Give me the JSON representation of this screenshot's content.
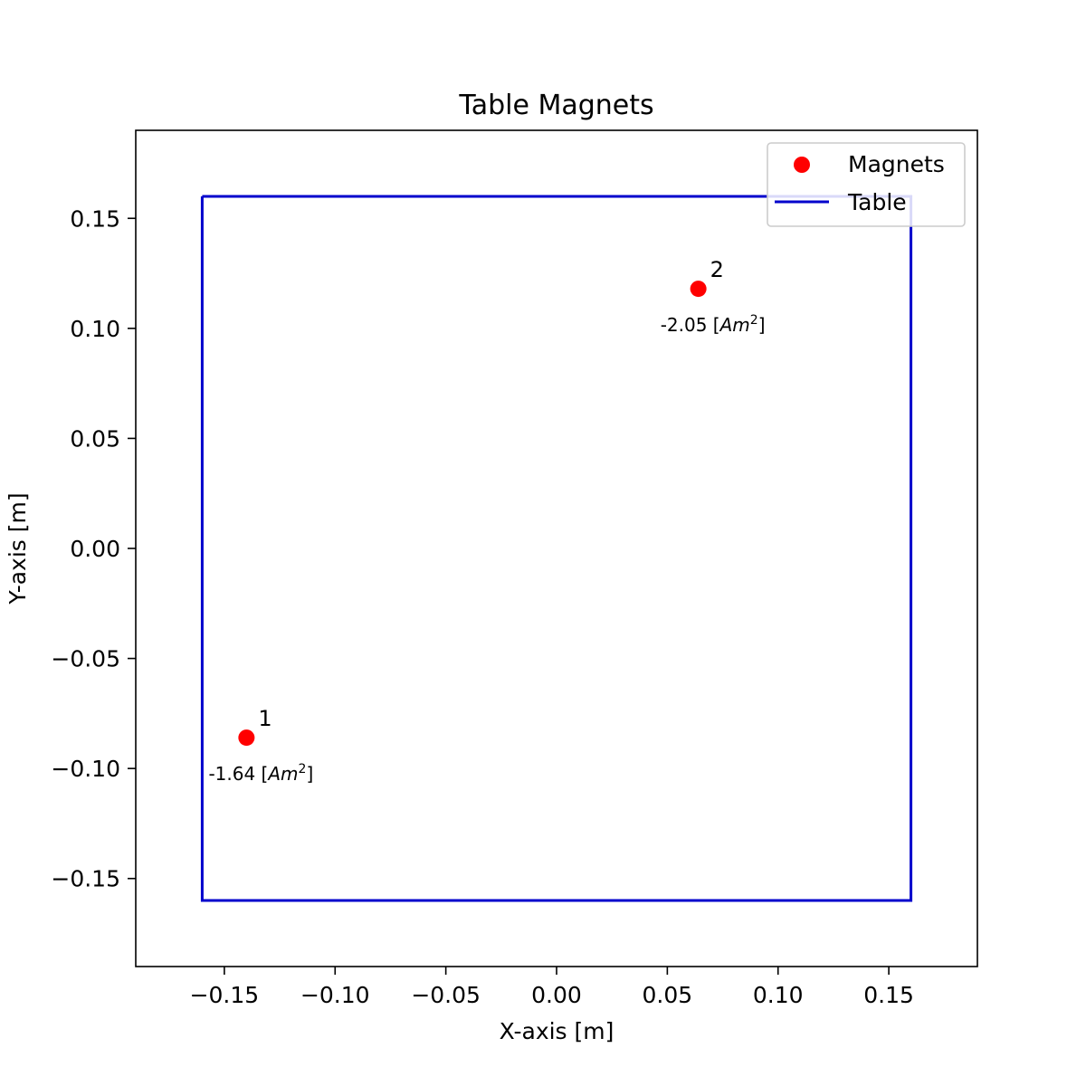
{
  "chart_data": {
    "type": "scatter",
    "title": "Table Magnets",
    "xlabel": "X-axis [m]",
    "ylabel": "Y-axis [m]",
    "xlim": [
      -0.19,
      0.19
    ],
    "ylim": [
      -0.19,
      0.19
    ],
    "xticks": [
      -0.15,
      -0.1,
      -0.05,
      0.0,
      0.05,
      0.1,
      0.15
    ],
    "yticks": [
      -0.15,
      -0.1,
      -0.05,
      0.0,
      0.05,
      0.1,
      0.15
    ],
    "xtick_labels": [
      "−0.15",
      "−0.10",
      "−0.05",
      "0.00",
      "0.05",
      "0.10",
      "0.15"
    ],
    "ytick_labels": [
      "−0.15",
      "−0.10",
      "−0.05",
      "0.00",
      "0.05",
      "0.10",
      "0.15"
    ],
    "grid": false,
    "legend": {
      "placement": "upper right",
      "entries": [
        {
          "label": "Magnets",
          "marker": "circle",
          "color": "#ff0000"
        },
        {
          "label": "Table",
          "marker": "line",
          "color": "#0000cc"
        }
      ]
    },
    "series": [
      {
        "name": "Magnets",
        "type": "scatter",
        "color": "#ff0000",
        "points": [
          {
            "id": "1",
            "x": -0.14,
            "y": -0.086,
            "moment_value": "-1.64",
            "moment_unit_open": "[",
            "moment_unit": "Am",
            "moment_exp": "2",
            "moment_unit_close": "]"
          },
          {
            "id": "2",
            "x": 0.064,
            "y": 0.118,
            "moment_value": "-2.05",
            "moment_unit_open": "[",
            "moment_unit": "Am",
            "moment_exp": "2",
            "moment_unit_close": "]"
          }
        ]
      },
      {
        "name": "Table",
        "type": "line",
        "color": "#0000cc",
        "x": [
          -0.16,
          0.16,
          0.16,
          -0.16,
          -0.16
        ],
        "y": [
          0.16,
          0.16,
          -0.16,
          -0.16,
          0.16
        ]
      }
    ]
  }
}
